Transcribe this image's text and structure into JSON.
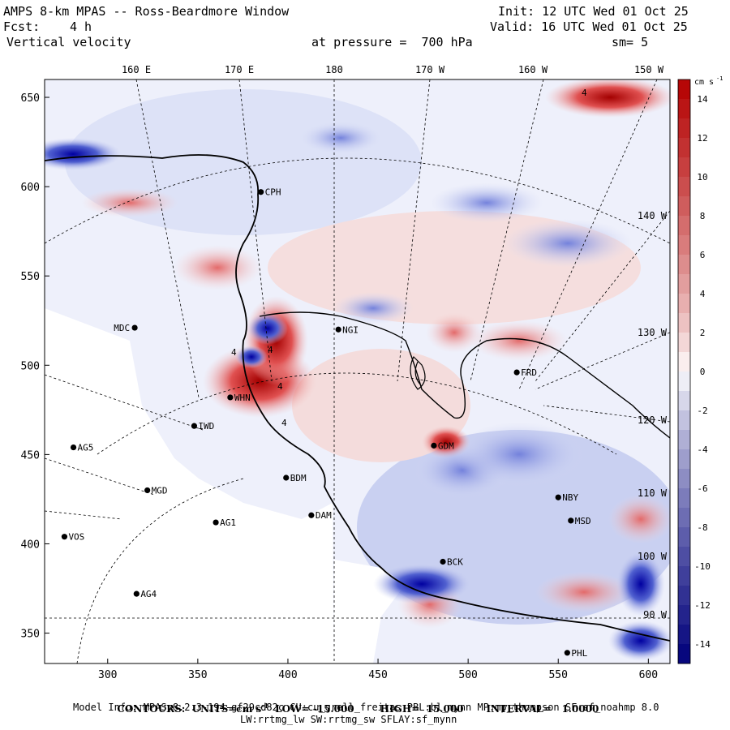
{
  "header": {
    "title": "AMPS 8-km MPAS -- Ross-Beardmore Window",
    "fcst_label": "Fcst:",
    "fcst_value": "4 h",
    "field": "Vertical velocity",
    "init": "Init: 12 UTC Wed 01 Oct 25",
    "valid": "Valid: 16 UTC Wed 01 Oct 25",
    "pressure": "at pressure =  700 hPa",
    "smoothing": "sm= 5"
  },
  "chart_data": {
    "type": "heatmap",
    "title": "Vertical velocity at 700 hPa",
    "xlim": [
      265,
      612
    ],
    "ylim": [
      333,
      660
    ],
    "x_ticks": [
      300,
      350,
      400,
      450,
      500,
      550,
      600
    ],
    "y_ticks": [
      350,
      400,
      450,
      500,
      550,
      600,
      650
    ],
    "longitude_labels": [
      "160 E",
      "170 E",
      "180",
      "170 W",
      "160 W",
      "150 W"
    ],
    "edge_longitude_labels": [
      "140 W",
      "130 W",
      "120 W",
      "110 W",
      "100 W",
      "90 W"
    ],
    "colorbar": {
      "units": "cm s",
      "units_exp": "-1",
      "ticks": [
        14,
        12,
        10,
        8,
        6,
        4,
        2,
        0,
        -2,
        -4,
        -6,
        -8,
        -10,
        -12,
        -14
      ],
      "range": [
        -15,
        15
      ],
      "positive_color": "#b40000",
      "negative_color": "#00007a"
    },
    "stations": [
      {
        "name": "CPH",
        "x": 385,
        "y": 597
      },
      {
        "name": "MDC",
        "x": 315,
        "y": 521
      },
      {
        "name": "NGI",
        "x": 428,
        "y": 520
      },
      {
        "name": "FRD",
        "x": 527,
        "y": 496
      },
      {
        "name": "WHN",
        "x": 368,
        "y": 482
      },
      {
        "name": "IWD",
        "x": 348,
        "y": 466
      },
      {
        "name": "AG5",
        "x": 281,
        "y": 454
      },
      {
        "name": "GDM",
        "x": 481,
        "y": 455
      },
      {
        "name": "MGD",
        "x": 322,
        "y": 430
      },
      {
        "name": "BDM",
        "x": 399,
        "y": 437
      },
      {
        "name": "NBY",
        "x": 550,
        "y": 426
      },
      {
        "name": "DAM",
        "x": 413,
        "y": 416
      },
      {
        "name": "AG1",
        "x": 360,
        "y": 412
      },
      {
        "name": "MSD",
        "x": 557,
        "y": 413
      },
      {
        "name": "VOS",
        "x": 276,
        "y": 404
      },
      {
        "name": "BCK",
        "x": 486,
        "y": 390
      },
      {
        "name": "AG4",
        "x": 316,
        "y": 372
      },
      {
        "name": "PHL",
        "x": 555,
        "y": 339
      }
    ],
    "contour_labels": [
      "4",
      "4",
      "4",
      "4",
      "4"
    ]
  },
  "footer": {
    "contours": "CONTOURS:  UNITS=cm s",
    "contours_exp": "-1",
    "low": "LOW= -15.000",
    "high": "HIGH=  15.000",
    "interval": "INTERVAL=   1.0000",
    "model_info": "Model Info: MPASv8.2.3-194-gf29cd82c CU:cu_grell_freitas PBL:bl_mynn MP:mp_thompson SF:sf_noahmp 8.0",
    "model_info2": "LW:rrtmg_lw SW:rrtmg_sw SFLAY:sf_mynn"
  }
}
